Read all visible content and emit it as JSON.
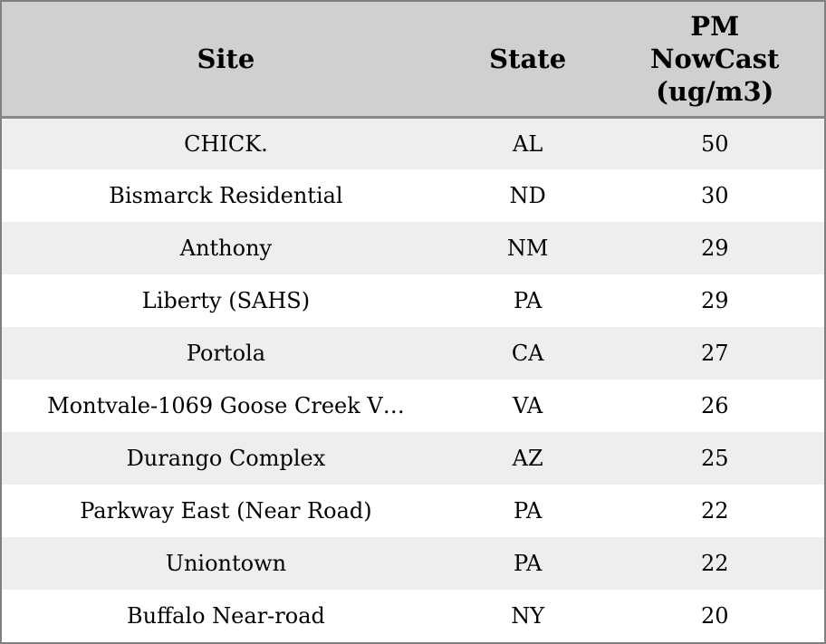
{
  "colors": {
    "outer_border": "#808080",
    "header_background": "#d0d0d0",
    "header_divider": "#888888",
    "row_stripe": "#eeeeee",
    "row_plain": "#ffffff",
    "text": "#000000"
  },
  "table": {
    "columns": [
      {
        "label": "Site"
      },
      {
        "label": "State"
      },
      {
        "label": "PM NowCast (ug/m3)"
      }
    ],
    "rows": [
      {
        "site": "CHICK.",
        "state": "AL",
        "pm_nowcast": "50"
      },
      {
        "site": "Bismarck Residential",
        "state": "ND",
        "pm_nowcast": "30"
      },
      {
        "site": "Anthony",
        "state": "NM",
        "pm_nowcast": "29"
      },
      {
        "site": "Liberty (SAHS)",
        "state": "PA",
        "pm_nowcast": "29"
      },
      {
        "site": "Portola",
        "state": "CA",
        "pm_nowcast": "27"
      },
      {
        "site": "Montvale-1069 Goose Creek V…",
        "state": "VA",
        "pm_nowcast": "26"
      },
      {
        "site": "Durango Complex",
        "state": "AZ",
        "pm_nowcast": "25"
      },
      {
        "site": "Parkway East (Near Road)",
        "state": "PA",
        "pm_nowcast": "22"
      },
      {
        "site": "Uniontown",
        "state": "PA",
        "pm_nowcast": "22"
      },
      {
        "site": "Buffalo Near-road",
        "state": "NY",
        "pm_nowcast": "20"
      }
    ]
  },
  "chart_data": {
    "type": "table",
    "title": "",
    "columns": [
      "Site",
      "State",
      "PM NowCast (ug/m3)"
    ],
    "categories": [
      "CHICK.",
      "Bismarck Residential",
      "Anthony",
      "Liberty (SAHS)",
      "Portola",
      "Montvale-1069 Goose Creek V…",
      "Durango Complex",
      "Parkway East (Near Road)",
      "Uniontown",
      "Buffalo Near-road"
    ],
    "states": [
      "AL",
      "ND",
      "NM",
      "PA",
      "CA",
      "VA",
      "AZ",
      "PA",
      "PA",
      "NY"
    ],
    "values": [
      50,
      30,
      29,
      29,
      27,
      26,
      25,
      22,
      22,
      20
    ]
  }
}
